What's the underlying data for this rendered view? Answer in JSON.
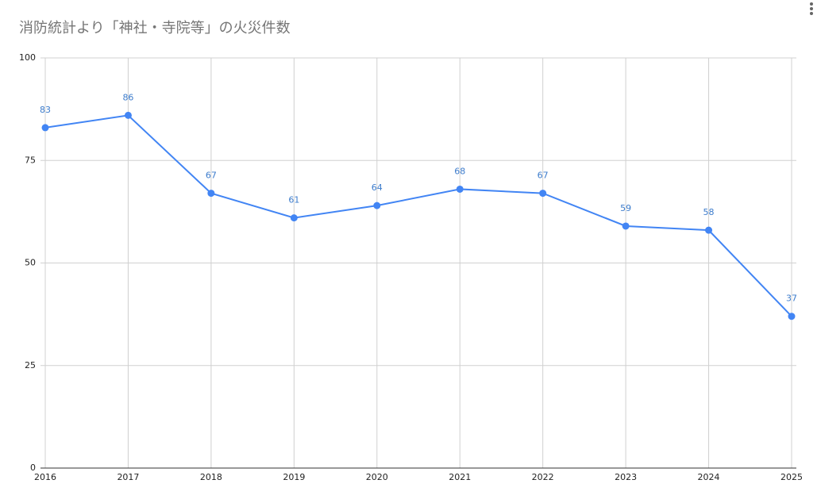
{
  "chart_data": {
    "type": "line",
    "title": "消防統計より「神社・寺院等」の火災件数",
    "categories": [
      "2016",
      "2017",
      "2018",
      "2019",
      "2020",
      "2021",
      "2022",
      "2023",
      "2024",
      "2025"
    ],
    "series": [
      {
        "color": "#4285f4",
        "values": [
          83,
          86,
          67,
          61,
          64,
          68,
          67,
          59,
          58,
          37
        ]
      }
    ],
    "ylim": [
      0,
      100
    ],
    "yticks": [
      0,
      25,
      50,
      75,
      100
    ],
    "grid": true,
    "data_labels": true
  }
}
